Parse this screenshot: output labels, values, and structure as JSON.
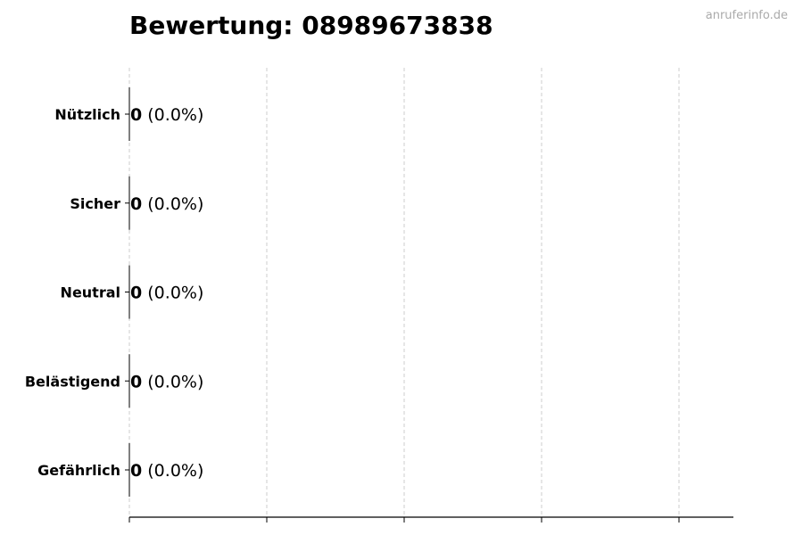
{
  "chart_data": {
    "type": "bar",
    "orientation": "horizontal",
    "title": "Bewertung: 08989673838",
    "categories": [
      "Nützlich",
      "Sicher",
      "Neutral",
      "Belästigend",
      "Gefährlich"
    ],
    "values": [
      0,
      0,
      0,
      0,
      0
    ],
    "labels": [
      {
        "count": "0",
        "percent": "(0.0%)"
      },
      {
        "count": "0",
        "percent": "(0.0%)"
      },
      {
        "count": "0",
        "percent": "(0.0%)"
      },
      {
        "count": "0",
        "percent": "(0.0%)"
      },
      {
        "count": "0",
        "percent": "(0.0%)"
      }
    ],
    "xlim": [
      0,
      4.4
    ],
    "xticks": [
      0,
      1,
      2,
      3,
      4
    ],
    "xtick_labels_shown": false,
    "grid": "vertical-dashed",
    "xlabel": "",
    "ylabel": ""
  },
  "watermark": "anruferinfo.de",
  "colors": {
    "grid": "#cccccc",
    "axis": "#000000",
    "bar": "#000000",
    "watermark": "#aaaaaa"
  }
}
